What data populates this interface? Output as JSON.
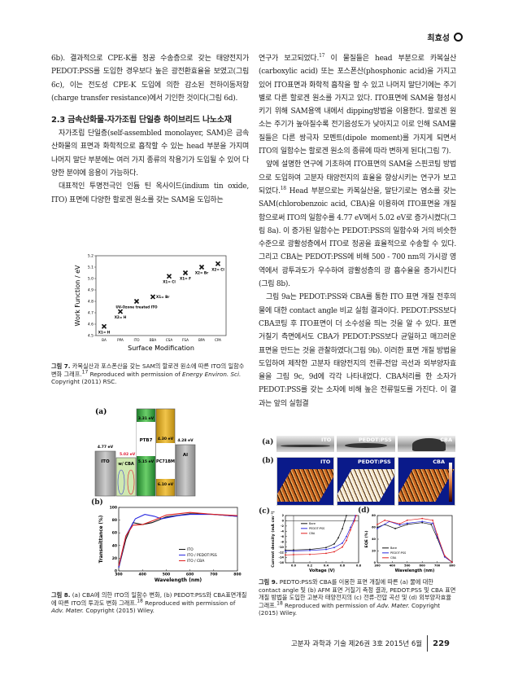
{
  "header": {
    "author": "최효성"
  },
  "left_column": {
    "p1": "6b). 결과적으로 CPE-K를 정공 수송층으로 갖는 태양전지가 PEDOT:PSS를 도입한 경우보다 높은 광전환효율을 보였고(그림 6c), 이는 전도성 CPE-K 도입에 의한 감소된 전하이동저항(charge transfer resistance)에서 기인한 것이다(그림 6d).",
    "heading": "2.3 금속산화물-자가조립 단일층 하이브리드 나노소재",
    "p2": "자가조립 단일층(self-assembled monolayer, SAM)은 금속산화물의 표면과 화학적으로 흡착할 수 있는 head 부분을 가지며 나머지 말단 부분에는 여러 가지 종류의 작용기가 도입될 수 있어 다양한 분야에 응용이 가능하다.",
    "p3": "대표적인 투명전극인 인듐 틴 옥사이드(indium tin oxide, ITO) 표면에 다양한 할로겐 원소를 갖는 SAM을 도입하는"
  },
  "right_column": {
    "p1a": "연구가 보고되었다.",
    "p1_ref": "17",
    "p1b": " 이 물질들은 head 부분으로 카복실산(carboxylic acid) 또는 포스폰산(phosphonic acid)을 가지고 있어 ITO표면과 화학적 흡착을 할 수 있고 나머지 말단기에는 주기별로 다른 할로겐 원소를 가지고 있다. ITO표면에 SAM을 형성시키기 위해 SAM용액 내에서 dipping방법을 이용한다. 할로겐 원소는 주기가 높아질수록 전기음성도가 낮아지고 이로 인해 SAM물질들은 다른 쌍극자 모멘트(dipole moment)를 가지게 되면서 ITO의 일함수는 할로겐 원소의 종류에 따라 변하게 된다(그림 7).",
    "p2a": "앞에 설명한 연구에 기초하여 ITO표면의 SAM을 스핀코팅 방법으로 도입하여 고분자 태양전지의 효율을 향상시키는 연구가 보고되었다.",
    "p2_ref": "18",
    "p2b": " Head 부분으로는 카복실산을, 말단기로는 염소를 갖는 SAM(chlorobenzoic acid, CBA)을 이용하여 ITO표면을 개질함으로써 ITO의 일함수를 4.77 eV에서 5.02 eV로 증가시켰다(그림 8a). 이 증가된 일함수는 PEDOT:PSS의 일함수와 거의 비슷한 수준으로 광활성층에서 ITO로 정공을 효율적으로 수송할 수 있다. 그리고 CBA는 PEDOT:PSS에 비해 500 - 700 nm의 가시광 영역에서 광투과도가 우수하여 광활성층의 광 흡수율을 증가시킨다(그림 8b).",
    "p3": "그림 9a는 PEDOT:PSS와 CBA를 통한 ITO 표면 개질 전후의 물에 대한 contact angle 비교 실험 결과이다. PEDOT:PSS보다 CBA코팅 후 ITO표면이 더 소수성을 띄는 것을 알 수 있다. 표면 거칠기 측면에서도 CBA가 PEDOT:PSS보다 균일하고 매끄러운 표면을 만드는 것을 관찰하였다(그림 9b). 이러한 표면 개질 방법을 도입하여 제작한 고분자 태양전지의 전류-전압 곡선과 외부양자효율을 그림 9c, 9d에 각각 나타내었다. CBA처리를 한 소자가 PEDOT:PSS를 갖는 소자에 비해 높은 전류밀도를 가진다. 이 결과는 앞의 실험결"
  },
  "fig7": {
    "caption_label": "그림 7.",
    "caption_text": " 카복실산과 포스폰산을 갖는 SAM의 할로겐 원소에 따른 ITO의 일함수 변화 그래프.",
    "caption_ref": "17",
    "caption_repro": " Reproduced with permission of ",
    "caption_journal": "Energy Environ. Sci.",
    "caption_copy": " Copyright (2011) RSC."
  },
  "fig8": {
    "panel_a": "(a)",
    "panel_b": "(b)",
    "energy_diagram": {
      "ito_label": "ITO",
      "ito_level": "4.77 eV",
      "cba_label": "w/ CBA",
      "cba_level": "5.02 eV",
      "ptb7_label": "PTB7",
      "ptb7_lumo": "3.31 eV",
      "ptb7_homo": "5.15 eV",
      "pcbm_label": "PC71BM",
      "pcbm_lumo": "4.30 eV",
      "pcbm_homo": "6.10 eV",
      "al_label": "Al",
      "al_level": "4.28 eV",
      "colors": {
        "ito": "#a8a8a8",
        "cba": "#cfe8b0",
        "ptb7": "#2e9a3a",
        "pcbm": "#d4a017",
        "al": "#b0b0b0",
        "shift": "#e0102a"
      }
    },
    "caption_label": "그림 8.",
    "caption_text": " (a) CBA에 의한 ITO의 일함수 변화, (b) PEDOT:PSS와 CBA표면개질에 따른 ITO의 투과도 변화 그래프.",
    "caption_ref": "18",
    "caption_repro": " Reproduced with permission of ",
    "caption_journal": "Adv. Mater.",
    "caption_copy": " Copyright (2015) Wiley."
  },
  "fig9": {
    "panel_a": "(a)",
    "panel_b": "(b)",
    "panel_c": "(c)",
    "panel_d": "(d)",
    "image_labels": [
      "ITO",
      "PEDOT:PSS",
      "CBA"
    ],
    "caption_label": "그림 9.",
    "caption_text": " PEDTO:PSS와 CBA를 이용한 표면 개질에 따른 (a) 물에 대한 contact angle 및 (b) AFM 표면 거칠기 측정 결과, PEDOT:PSS 및 CBA 표면 개질 방법을 도입한 고분자 태양전지의 (c) 전류-전압 곡선 및 (d) 외부양자효율 그래프.",
    "caption_ref": "18",
    "caption_repro": " Reproduced with permission of ",
    "caption_journal": "Adv. Mater.",
    "caption_copy": " Copyright (2015) Wiley."
  },
  "chart_data": [
    {
      "id": "fig7",
      "type": "scatter",
      "xlabel": "Surface Modification",
      "ylabel": "Work Function / eV",
      "categories": [
        "BA",
        "PPA",
        "ITO",
        "BBA",
        "CSA",
        "FSA",
        "BPA",
        "CPA"
      ],
      "values": [
        4.58,
        4.71,
        4.8,
        4.84,
        5.02,
        5.05,
        5.1,
        5.13
      ],
      "point_labels": [
        "X1= H",
        "X2= H",
        "UV-Ozone treated ITO",
        "X1= Br",
        "X1= Cl",
        "X1= F",
        "X2= Br",
        "X2= Cl"
      ],
      "ylim": [
        4.5,
        5.2
      ],
      "yticks": [
        4.5,
        4.6,
        4.7,
        4.8,
        4.9,
        5.0,
        5.1,
        5.2
      ]
    },
    {
      "id": "fig8b",
      "type": "line",
      "xlabel": "Wavelength (nm)",
      "ylabel": "Transmittance (%)",
      "xlim": [
        300,
        800
      ],
      "ylim": [
        0,
        100
      ],
      "xticks": [
        300,
        400,
        500,
        600,
        700,
        800
      ],
      "yticks": [
        0,
        20,
        40,
        60,
        80,
        100
      ],
      "legend": "bottom-right",
      "series": [
        {
          "name": "ITO",
          "color": "#111111",
          "points": [
            [
              300,
              5
            ],
            [
              330,
              50
            ],
            [
              360,
              76
            ],
            [
              400,
              73
            ],
            [
              440,
              76
            ],
            [
              500,
              85
            ],
            [
              600,
              90
            ],
            [
              700,
              89
            ],
            [
              800,
              86
            ]
          ]
        },
        {
          "name": "ITO / PEDOT:PSS",
          "color": "#2a2ae0",
          "points": [
            [
              300,
              5
            ],
            [
              330,
              55
            ],
            [
              370,
              82
            ],
            [
              410,
              89
            ],
            [
              450,
              86
            ],
            [
              480,
              82
            ],
            [
              550,
              87
            ],
            [
              600,
              89
            ],
            [
              700,
              89
            ],
            [
              800,
              86
            ]
          ]
        },
        {
          "name": "ITO / CBA",
          "color": "#e02020",
          "points": [
            [
              300,
              8
            ],
            [
              330,
              55
            ],
            [
              360,
              72
            ],
            [
              400,
              73
            ],
            [
              450,
              80
            ],
            [
              500,
              88
            ],
            [
              600,
              92
            ],
            [
              700,
              89
            ],
            [
              800,
              87
            ]
          ]
        }
      ]
    },
    {
      "id": "fig9c",
      "type": "line",
      "xlabel": "Voltage (V)",
      "ylabel": "Current density (mA cm⁻²)",
      "xlim": [
        -0.1,
        0.8
      ],
      "ylim": [
        -16,
        2
      ],
      "xticks": [
        0.0,
        0.2,
        0.4,
        0.6,
        0.8
      ],
      "yticks": [
        -16,
        -14,
        -12,
        -10,
        -8,
        -6,
        -4,
        -2,
        0,
        2
      ],
      "legend": "top-left",
      "series": [
        {
          "name": "Bare",
          "color": "#111111",
          "points": [
            [
              -0.1,
              -11.2
            ],
            [
              0,
              -11.1
            ],
            [
              0.2,
              -10.9
            ],
            [
              0.4,
              -10.2
            ],
            [
              0.5,
              -8.8
            ],
            [
              0.55,
              -6.5
            ],
            [
              0.6,
              -3
            ],
            [
              0.63,
              0
            ],
            [
              0.65,
              2
            ]
          ]
        },
        {
          "name": "PEDOT:PSS",
          "color": "#2a2ae0",
          "points": [
            [
              -0.1,
              -11.6
            ],
            [
              0,
              -11.5
            ],
            [
              0.2,
              -11.3
            ],
            [
              0.4,
              -10.9
            ],
            [
              0.5,
              -10.2
            ],
            [
              0.6,
              -8.5
            ],
            [
              0.65,
              -6
            ],
            [
              0.7,
              -2.5
            ],
            [
              0.74,
              0
            ],
            [
              0.76,
              2
            ]
          ]
        },
        {
          "name": "CBA",
          "color": "#e02020",
          "points": [
            [
              -0.1,
              -13
            ],
            [
              0,
              -12.9
            ],
            [
              0.2,
              -12.8
            ],
            [
              0.4,
              -12.4
            ],
            [
              0.5,
              -11.8
            ],
            [
              0.6,
              -10
            ],
            [
              0.65,
              -7.5
            ],
            [
              0.7,
              -3.5
            ],
            [
              0.75,
              0
            ],
            [
              0.77,
              2
            ]
          ]
        }
      ]
    },
    {
      "id": "fig9d",
      "type": "line",
      "xlabel": "Wavelength (nm)",
      "ylabel": "EQE (%)",
      "xlim": [
        300,
        800
      ],
      "ylim": [
        0,
        80
      ],
      "xticks": [
        300,
        400,
        500,
        600,
        700,
        800
      ],
      "yticks": [
        0,
        20,
        40,
        60,
        80
      ],
      "legend": "bottom-left",
      "series": [
        {
          "name": "Bare",
          "color": "#111111",
          "points": [
            [
              300,
              60
            ],
            [
              350,
              65
            ],
            [
              420,
              58
            ],
            [
              500,
              65
            ],
            [
              600,
              68
            ],
            [
              660,
              65
            ],
            [
              700,
              42
            ],
            [
              750,
              10
            ],
            [
              800,
              1
            ]
          ]
        },
        {
          "name": "PEDOT:PSS",
          "color": "#2a2ae0",
          "points": [
            [
              300,
              58
            ],
            [
              380,
              70
            ],
            [
              450,
              64
            ],
            [
              500,
              67
            ],
            [
              600,
              70
            ],
            [
              670,
              67
            ],
            [
              700,
              45
            ],
            [
              750,
              10
            ],
            [
              800,
              1
            ]
          ]
        },
        {
          "name": "CBA",
          "color": "#e02020",
          "points": [
            [
              300,
              65
            ],
            [
              350,
              72
            ],
            [
              450,
              66
            ],
            [
              500,
              72
            ],
            [
              600,
              75
            ],
            [
              670,
              72
            ],
            [
              700,
              48
            ],
            [
              750,
              12
            ],
            [
              800,
              1
            ]
          ]
        }
      ]
    }
  ],
  "footer": {
    "journal": "고분자 과학과 기술  제26권 3호 2015년 6월",
    "page": "229"
  }
}
